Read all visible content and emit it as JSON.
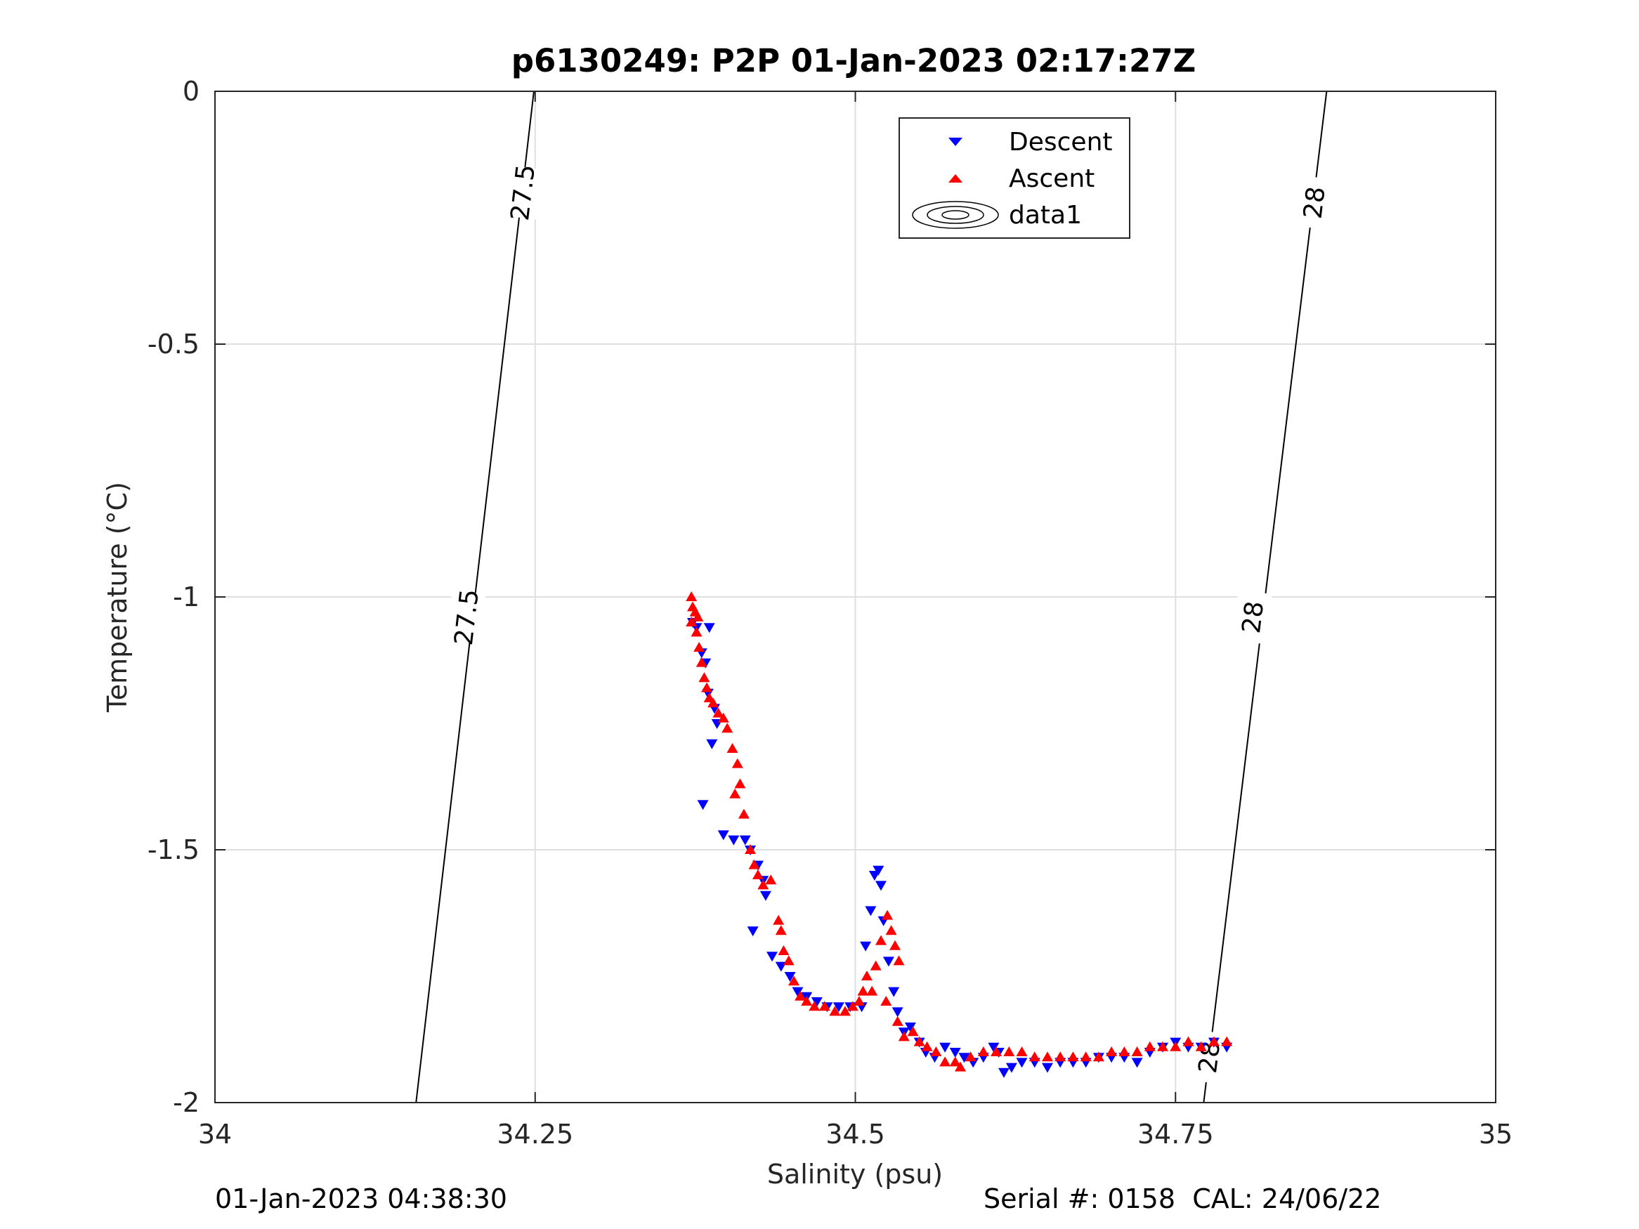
{
  "chart_data": {
    "type": "scatter",
    "title": "p6130249: P2P 01-Jan-2023 02:17:27Z",
    "xlabel": "Salinity (psu)",
    "ylabel": "Temperature (°C)",
    "xlim": [
      34,
      35
    ],
    "ylim": [
      -2,
      0
    ],
    "xticks": [
      "34",
      "34.25",
      "34.5",
      "34.75",
      "35"
    ],
    "yticks": [
      "0",
      "-0.5",
      "-1",
      "-1.5",
      "-2"
    ],
    "grid": true,
    "legend_position": "top-center",
    "legend": [
      "Descent",
      "Ascent",
      "data1"
    ],
    "colors": {
      "descent": "#0000ff",
      "ascent": "#ff0000",
      "contour": "#000000",
      "grid": "#dfdfdf"
    },
    "series": [
      {
        "name": "Descent",
        "marker": "triangle-down",
        "color": "#0000ff",
        "points": [
          [
            34.373,
            -1.05
          ],
          [
            34.376,
            -1.06
          ],
          [
            34.38,
            -1.11
          ],
          [
            34.383,
            -1.13
          ],
          [
            34.386,
            -1.06
          ],
          [
            34.385,
            -1.19
          ],
          [
            34.39,
            -1.22
          ],
          [
            34.392,
            -1.25
          ],
          [
            34.388,
            -1.29
          ],
          [
            34.381,
            -1.41
          ],
          [
            34.397,
            -1.47
          ],
          [
            34.405,
            -1.48
          ],
          [
            34.414,
            -1.48
          ],
          [
            34.418,
            -1.5
          ],
          [
            34.424,
            -1.53
          ],
          [
            34.428,
            -1.56
          ],
          [
            34.43,
            -1.59
          ],
          [
            34.42,
            -1.66
          ],
          [
            34.435,
            -1.71
          ],
          [
            34.442,
            -1.73
          ],
          [
            34.449,
            -1.75
          ],
          [
            34.455,
            -1.78
          ],
          [
            34.462,
            -1.79
          ],
          [
            34.47,
            -1.8
          ],
          [
            34.478,
            -1.81
          ],
          [
            34.487,
            -1.81
          ],
          [
            34.496,
            -1.81
          ],
          [
            34.505,
            -1.81
          ],
          [
            34.508,
            -1.69
          ],
          [
            34.512,
            -1.62
          ],
          [
            34.515,
            -1.55
          ],
          [
            34.518,
            -1.54
          ],
          [
            34.52,
            -1.57
          ],
          [
            34.522,
            -1.64
          ],
          [
            34.526,
            -1.72
          ],
          [
            34.53,
            -1.78
          ],
          [
            34.533,
            -1.82
          ],
          [
            34.538,
            -1.86
          ],
          [
            34.543,
            -1.85
          ],
          [
            34.55,
            -1.88
          ],
          [
            34.555,
            -1.9
          ],
          [
            34.562,
            -1.91
          ],
          [
            34.57,
            -1.89
          ],
          [
            34.578,
            -1.9
          ],
          [
            34.585,
            -1.91
          ],
          [
            34.592,
            -1.92
          ],
          [
            34.6,
            -1.91
          ],
          [
            34.608,
            -1.89
          ],
          [
            34.612,
            -1.9
          ],
          [
            34.616,
            -1.94
          ],
          [
            34.622,
            -1.93
          ],
          [
            34.63,
            -1.92
          ],
          [
            34.64,
            -1.92
          ],
          [
            34.65,
            -1.93
          ],
          [
            34.66,
            -1.92
          ],
          [
            34.67,
            -1.92
          ],
          [
            34.68,
            -1.92
          ],
          [
            34.69,
            -1.91
          ],
          [
            34.7,
            -1.91
          ],
          [
            34.71,
            -1.91
          ],
          [
            34.72,
            -1.92
          ],
          [
            34.73,
            -1.9
          ],
          [
            34.74,
            -1.89
          ],
          [
            34.75,
            -1.88
          ],
          [
            34.76,
            -1.89
          ],
          [
            34.77,
            -1.89
          ],
          [
            34.78,
            -1.88
          ],
          [
            34.79,
            -1.89
          ]
        ]
      },
      {
        "name": "Ascent",
        "marker": "triangle-up",
        "color": "#ff0000",
        "points": [
          [
            34.372,
            -1.0
          ],
          [
            34.373,
            -1.02
          ],
          [
            34.372,
            -1.05
          ],
          [
            34.375,
            -1.03
          ],
          [
            34.377,
            -1.04
          ],
          [
            34.376,
            -1.07
          ],
          [
            34.378,
            -1.1
          ],
          [
            34.38,
            -1.13
          ],
          [
            34.382,
            -1.16
          ],
          [
            34.384,
            -1.18
          ],
          [
            34.386,
            -1.2
          ],
          [
            34.389,
            -1.21
          ],
          [
            34.393,
            -1.23
          ],
          [
            34.397,
            -1.24
          ],
          [
            34.4,
            -1.26
          ],
          [
            34.404,
            -1.3
          ],
          [
            34.408,
            -1.33
          ],
          [
            34.41,
            -1.37
          ],
          [
            34.406,
            -1.39
          ],
          [
            34.413,
            -1.43
          ],
          [
            34.418,
            -1.5
          ],
          [
            34.421,
            -1.53
          ],
          [
            34.424,
            -1.55
          ],
          [
            34.428,
            -1.57
          ],
          [
            34.434,
            -1.56
          ],
          [
            34.44,
            -1.64
          ],
          [
            34.442,
            -1.66
          ],
          [
            34.444,
            -1.7
          ],
          [
            34.448,
            -1.72
          ],
          [
            34.452,
            -1.76
          ],
          [
            34.457,
            -1.79
          ],
          [
            34.462,
            -1.8
          ],
          [
            34.468,
            -1.81
          ],
          [
            34.476,
            -1.81
          ],
          [
            34.484,
            -1.82
          ],
          [
            34.492,
            -1.82
          ],
          [
            34.498,
            -1.81
          ],
          [
            34.503,
            -1.8
          ],
          [
            34.506,
            -1.78
          ],
          [
            34.509,
            -1.75
          ],
          [
            34.513,
            -1.78
          ],
          [
            34.516,
            -1.73
          ],
          [
            34.52,
            -1.68
          ],
          [
            34.525,
            -1.63
          ],
          [
            34.528,
            -1.66
          ],
          [
            34.531,
            -1.69
          ],
          [
            34.534,
            -1.72
          ],
          [
            34.524,
            -1.8
          ],
          [
            34.533,
            -1.84
          ],
          [
            34.538,
            -1.87
          ],
          [
            34.545,
            -1.86
          ],
          [
            34.55,
            -1.88
          ],
          [
            34.556,
            -1.89
          ],
          [
            34.563,
            -1.9
          ],
          [
            34.57,
            -1.92
          ],
          [
            34.578,
            -1.92
          ],
          [
            34.582,
            -1.93
          ],
          [
            34.59,
            -1.91
          ],
          [
            34.6,
            -1.9
          ],
          [
            34.61,
            -1.9
          ],
          [
            34.62,
            -1.9
          ],
          [
            34.63,
            -1.9
          ],
          [
            34.64,
            -1.91
          ],
          [
            34.65,
            -1.91
          ],
          [
            34.66,
            -1.91
          ],
          [
            34.67,
            -1.91
          ],
          [
            34.68,
            -1.91
          ],
          [
            34.69,
            -1.91
          ],
          [
            34.7,
            -1.9
          ],
          [
            34.71,
            -1.9
          ],
          [
            34.72,
            -1.9
          ],
          [
            34.73,
            -1.89
          ],
          [
            34.74,
            -1.89
          ],
          [
            34.75,
            -1.89
          ],
          [
            34.76,
            -1.88
          ],
          [
            34.77,
            -1.89
          ],
          [
            34.78,
            -1.88
          ],
          [
            34.79,
            -1.88
          ]
        ]
      }
    ],
    "contours": [
      {
        "level": "27.5",
        "line": [
          [
            34.157,
            -2
          ],
          [
            34.249,
            0
          ]
        ],
        "labels": [
          [
            34.196,
            -1.04
          ],
          [
            34.24,
            -0.2
          ]
        ]
      },
      {
        "level": "28",
        "line": [
          [
            34.772,
            -2
          ],
          [
            34.868,
            0
          ]
        ],
        "labels": [
          [
            34.776,
            -1.91
          ],
          [
            34.81,
            -1.04
          ],
          [
            34.858,
            -0.22
          ]
        ]
      }
    ],
    "legend_labels": {
      "descent": "Descent",
      "ascent": "Ascent",
      "data1": "data1"
    }
  },
  "footer": {
    "left": "01-Jan-2023 04:38:30",
    "right": "Serial #: 0158  CAL: 24/06/22"
  }
}
